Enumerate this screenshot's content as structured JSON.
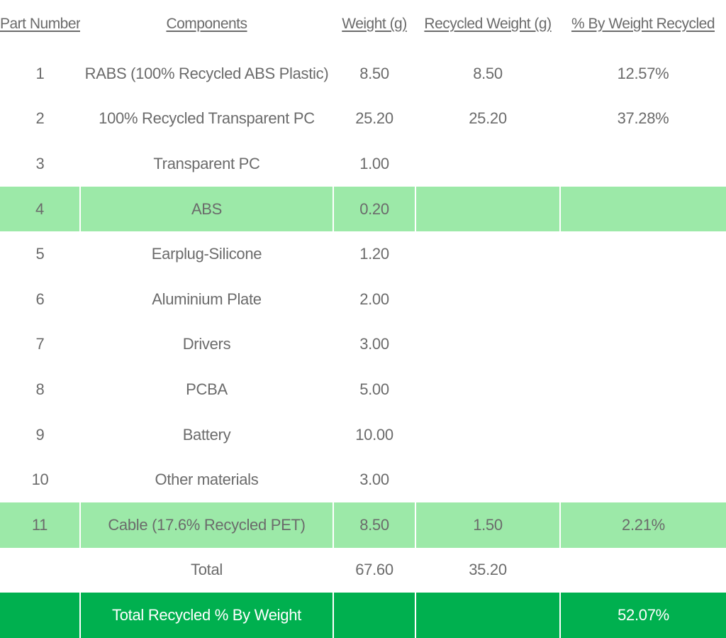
{
  "table": {
    "headers": {
      "part_number": "Part Number",
      "components": "Components",
      "weight": "Weight (g)",
      "recycled_weight": "Recycled Weight (g)",
      "pct_recycled": "% By Weight Recycled"
    },
    "rows": [
      {
        "part": "1",
        "component": "RABS (100% Recycled ABS Plastic)",
        "weight": "8.50",
        "recycled": "8.50",
        "pct": "12.57%"
      },
      {
        "part": "2",
        "component": "100% Recycled Transparent PC",
        "weight": "25.20",
        "recycled": "25.20",
        "pct": "37.28%"
      },
      {
        "part": "3",
        "component": "Transparent PC",
        "weight": "1.00",
        "recycled": "",
        "pct": ""
      },
      {
        "part": "4",
        "component": "ABS",
        "weight": "0.20",
        "recycled": "",
        "pct": ""
      },
      {
        "part": "5",
        "component": "Earplug-Silicone",
        "weight": "1.20",
        "recycled": "",
        "pct": ""
      },
      {
        "part": "6",
        "component": "Aluminium Plate",
        "weight": "2.00",
        "recycled": "",
        "pct": ""
      },
      {
        "part": "7",
        "component": "Drivers",
        "weight": "3.00",
        "recycled": "",
        "pct": ""
      },
      {
        "part": "8",
        "component": "PCBA",
        "weight": "5.00",
        "recycled": "",
        "pct": ""
      },
      {
        "part": "9",
        "component": "Battery",
        "weight": "10.00",
        "recycled": "",
        "pct": ""
      },
      {
        "part": "10",
        "component": "Other materials",
        "weight": "3.00",
        "recycled": "",
        "pct": ""
      },
      {
        "part": "11",
        "component": "Cable (17.6% Recycled PET)",
        "weight": "8.50",
        "recycled": "1.50",
        "pct": "2.21%"
      }
    ],
    "total": {
      "label": "Total",
      "weight": "67.60",
      "recycled": "35.20"
    },
    "grand_total": {
      "label": "Total Recycled % By Weight",
      "pct": "52.07%"
    }
  },
  "colors": {
    "highlight_row": "#9ce9a8",
    "grand_total_row": "#00b04f",
    "text": "#6b6b6b",
    "grand_total_text": "#ffffff"
  }
}
